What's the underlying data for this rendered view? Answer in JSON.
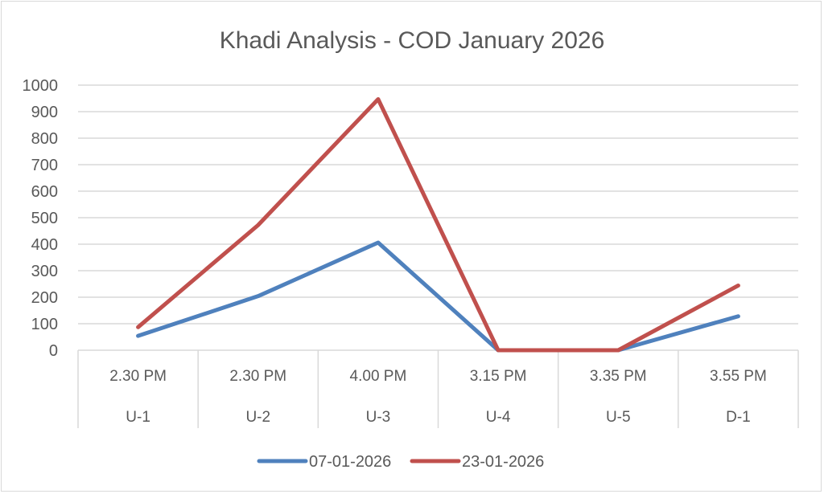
{
  "chart_data": {
    "type": "line",
    "title": "Khadi Analysis - COD January 2026",
    "categories": [
      {
        "time": "2.30 PM",
        "unit": "U-1"
      },
      {
        "time": "2.30 PM",
        "unit": "U-2"
      },
      {
        "time": "4.00 PM",
        "unit": "U-3"
      },
      {
        "time": "3.15 PM",
        "unit": "U-4"
      },
      {
        "time": "3.35 PM",
        "unit": "U-5"
      },
      {
        "time": "3.55 PM",
        "unit": "D-1"
      }
    ],
    "series": [
      {
        "name": "07-01-2026",
        "color": "#4f81bd",
        "values": [
          54,
          204,
          406,
          0,
          0,
          128
        ]
      },
      {
        "name": "23-01-2026",
        "color": "#c0504d",
        "values": [
          87,
          472,
          947,
          0,
          0,
          244
        ]
      }
    ],
    "ylim": [
      0,
      1000
    ],
    "yticks": [
      "0",
      "100",
      "200",
      "300",
      "400",
      "500",
      "600",
      "700",
      "800",
      "900",
      "1000"
    ],
    "grid": true,
    "legend": "bottom",
    "xlabel": "",
    "ylabel": ""
  }
}
